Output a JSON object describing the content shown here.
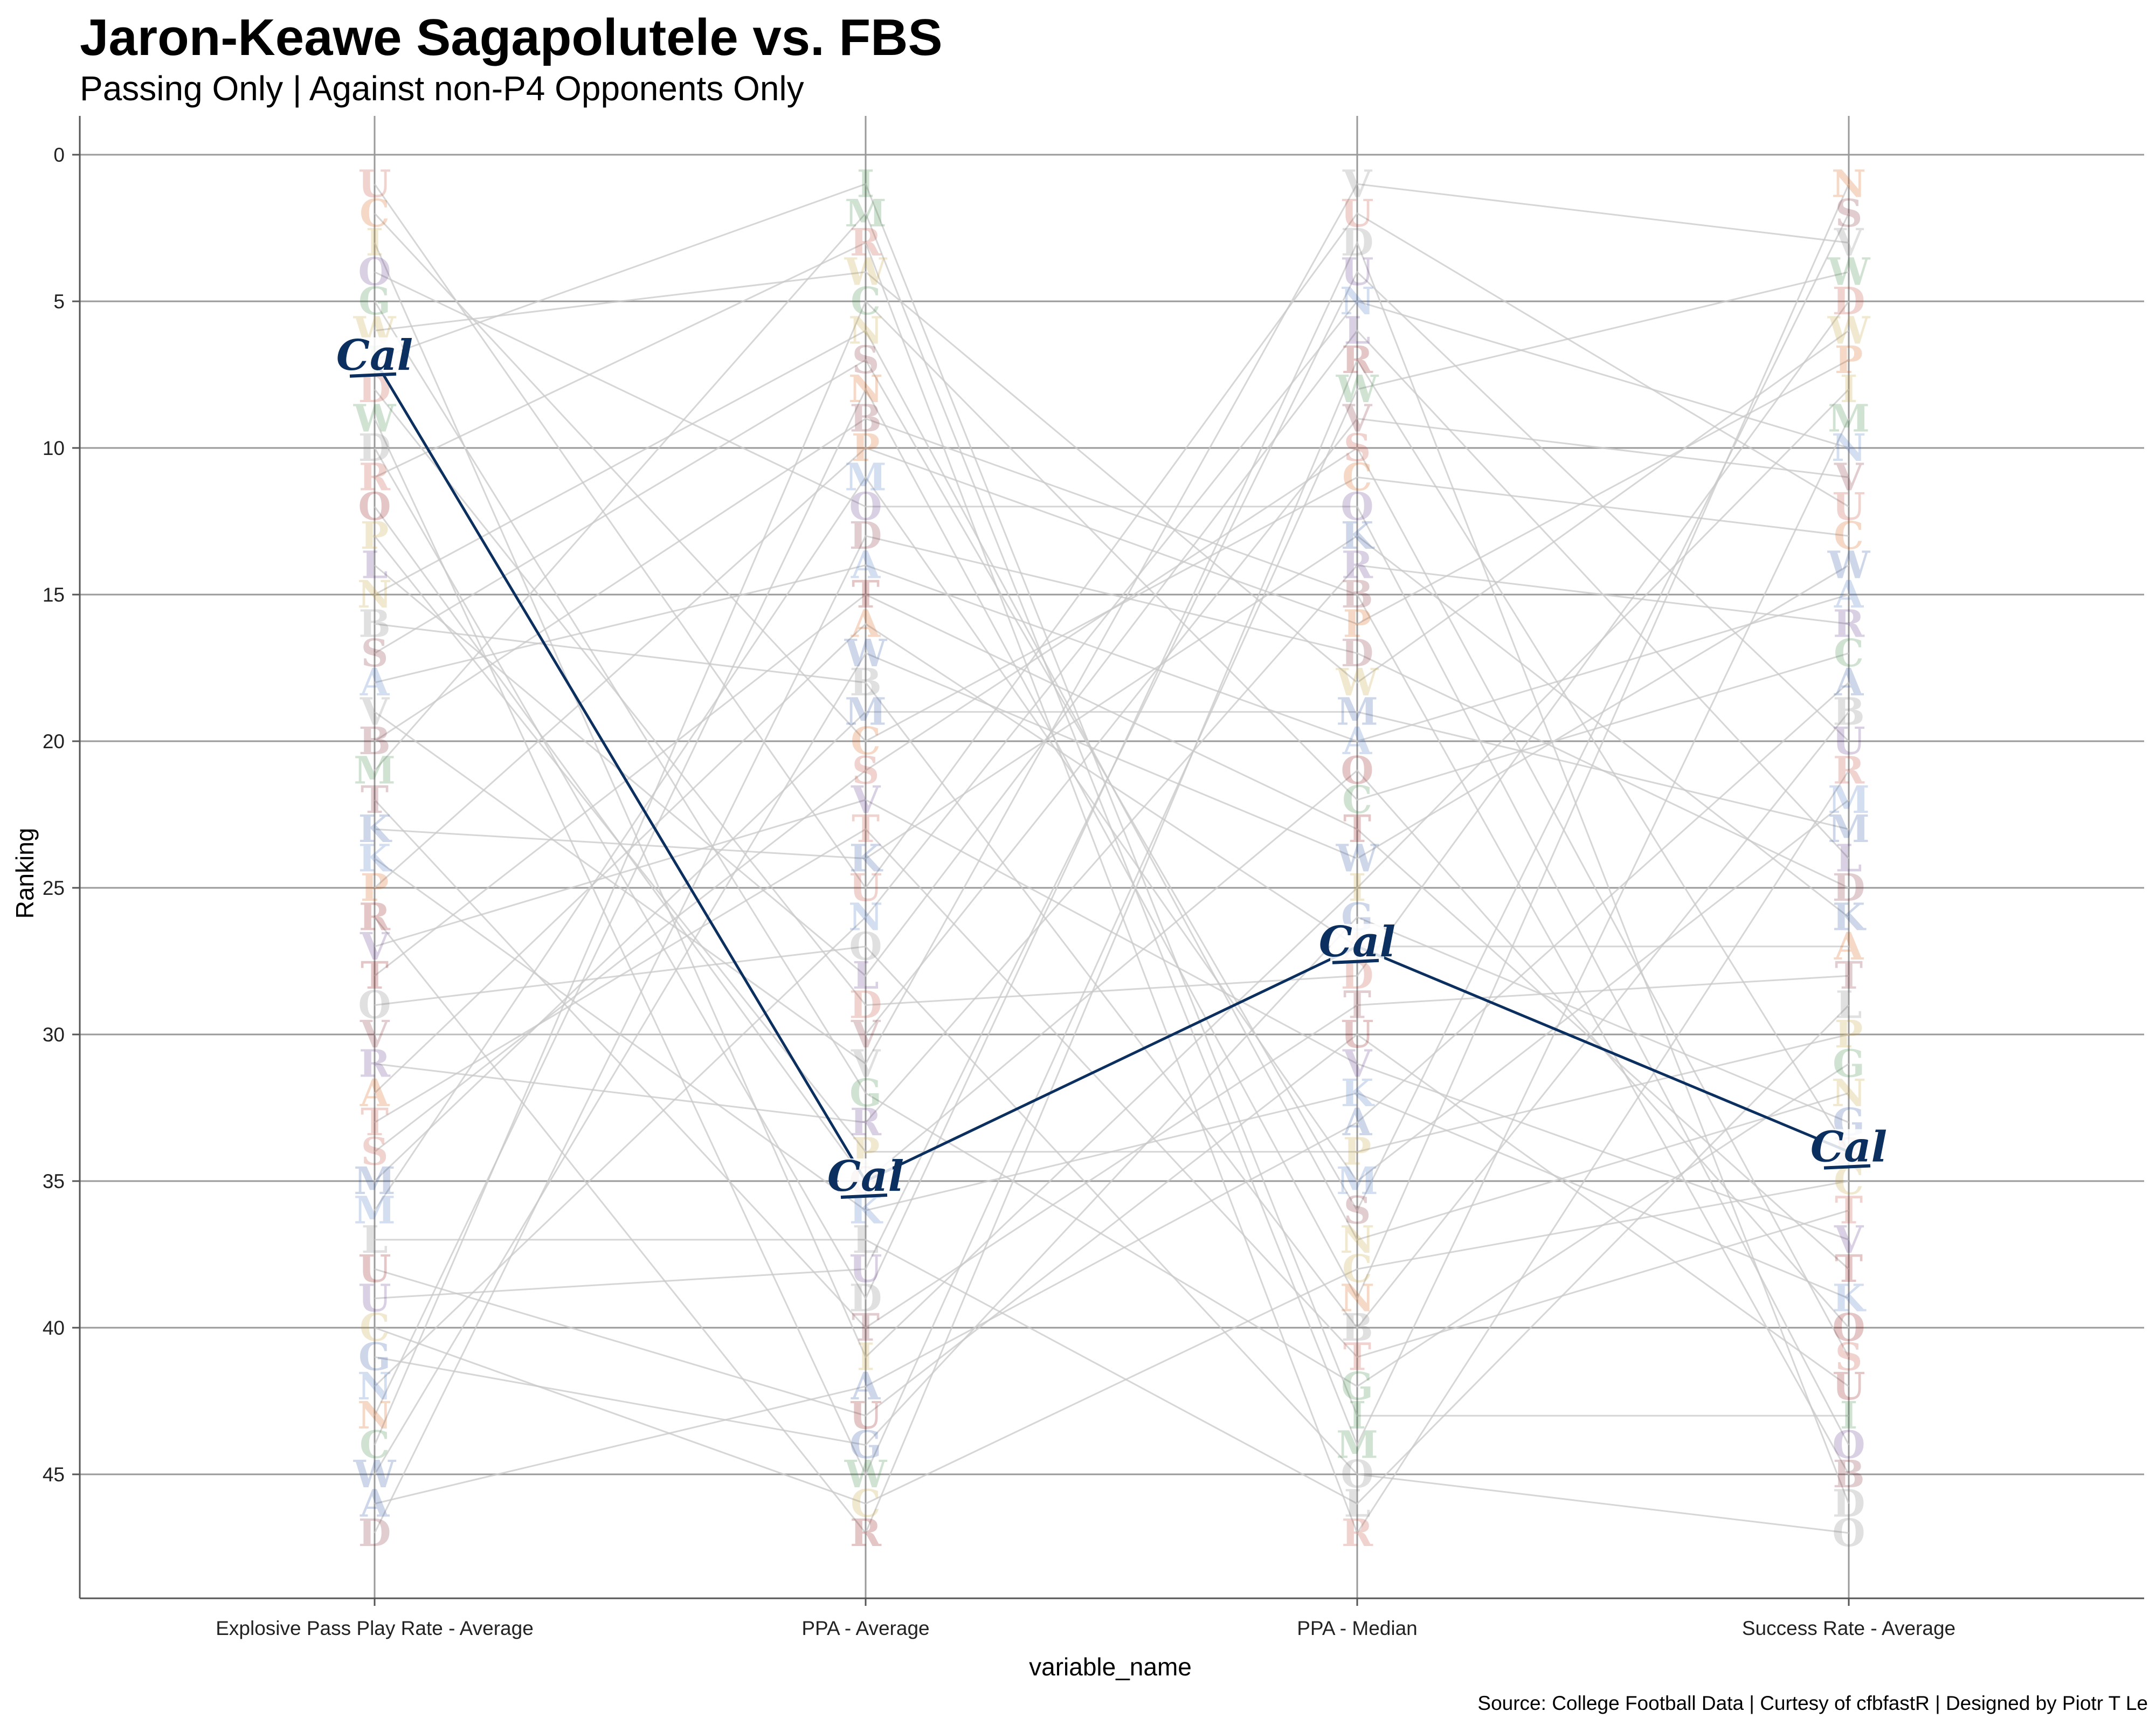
{
  "title": "Jaron-Keawe Sagapolutele vs. FBS",
  "subtitle": "Passing Only |  Against non-P4 Opponents Only",
  "caption": "Source: College Football Data | Curtesy of cfbfastR | Designed by Piotr T Le",
  "colors": {
    "highlight": "#0b2f5e",
    "background_lines": "#c8c8c8",
    "gridline": "#9a9a9a"
  },
  "chart_data": {
    "type": "line",
    "xlabel": "variable_name",
    "ylabel": "Ranking",
    "categories": [
      "Explosive Pass Play Rate - Average",
      "PPA - Average",
      "PPA - Median",
      "Success Rate - Average"
    ],
    "y_axis": {
      "reversed": true,
      "ylim": [
        0,
        48
      ],
      "ticks": [
        0,
        5,
        10,
        15,
        20,
        25,
        30,
        35,
        40,
        45
      ]
    },
    "grid": true,
    "highlight_series": {
      "name": "Cal",
      "logo_text": "Cal",
      "values": [
        7,
        35,
        27,
        34
      ]
    },
    "background_series_count": 47,
    "background_logo_letters": [
      "U",
      "A",
      "T",
      "M",
      "D",
      "W",
      "V",
      "C",
      "O",
      "N",
      "R",
      "K",
      "S",
      "G",
      "B",
      "I",
      "L",
      "P"
    ]
  }
}
